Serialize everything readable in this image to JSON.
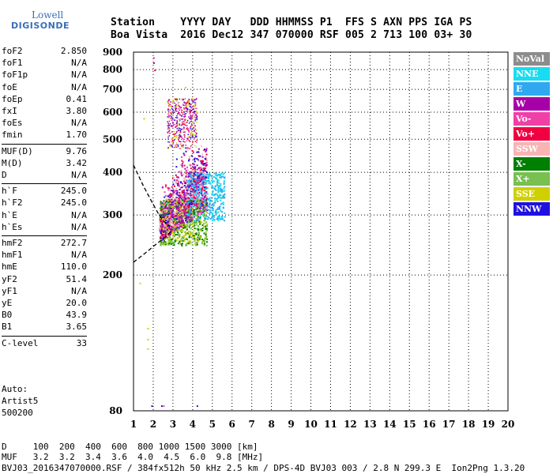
{
  "logo": {
    "line1": "Lowell",
    "line2": "DIGISONDE"
  },
  "header": {
    "row1": "Station    YYYY DAY   DDD HHMMSS P1  FFS S AXN PPS IGA PS",
    "row2": "Boa Vista  2016 Dec12 347 070000 RSF 005 2 713 100 03+ 30"
  },
  "params": [
    {
      "label": "foF2",
      "value": "2.850"
    },
    {
      "label": "foF1",
      "value": "N/A"
    },
    {
      "label": "foF1p",
      "value": "N/A"
    },
    {
      "label": "foE",
      "value": "N/A"
    },
    {
      "label": "foEp",
      "value": "0.41"
    },
    {
      "label": "fxI",
      "value": "3.80"
    },
    {
      "label": "foEs",
      "value": "N/A"
    },
    {
      "label": "fmin",
      "value": "1.70"
    },
    {
      "label": "MUF(D)",
      "value": "9.76"
    },
    {
      "label": "M(D)",
      "value": "3.42"
    },
    {
      "label": "D",
      "value": "N/A"
    },
    {
      "label": "h`F",
      "value": "245.0"
    },
    {
      "label": "h`F2",
      "value": "245.0"
    },
    {
      "label": "h`E",
      "value": "N/A"
    },
    {
      "label": "h`Es",
      "value": "N/A"
    },
    {
      "label": "hmF2",
      "value": "272.7"
    },
    {
      "label": "hmF1",
      "value": "N/A"
    },
    {
      "label": "hmE",
      "value": "110.0"
    },
    {
      "label": "yF2",
      "value": "51.4"
    },
    {
      "label": "yF1",
      "value": "N/A"
    },
    {
      "label": "yE",
      "value": "20.0"
    },
    {
      "label": "B0",
      "value": "43.9"
    },
    {
      "label": "B1",
      "value": "3.65"
    },
    {
      "label": "C-level",
      "value": "33"
    }
  ],
  "auto": {
    "line1": "Auto:",
    "line2": "Artist5",
    "line3": "500200"
  },
  "legend": [
    {
      "label": "NoVal",
      "color": "#8c8c8c"
    },
    {
      "label": "NNE",
      "color": "#18dcf0"
    },
    {
      "label": "E",
      "color": "#30a8f0"
    },
    {
      "label": "W",
      "color": "#a800a8"
    },
    {
      "label": "Vo-",
      "color": "#f040a8"
    },
    {
      "label": "Vo+",
      "color": "#f00040"
    },
    {
      "label": "SSW",
      "color": "#f8b4b4"
    },
    {
      "label": "X-",
      "color": "#008000"
    },
    {
      "label": "X+",
      "color": "#78c050"
    },
    {
      "label": "SSE",
      "color": "#d0d000"
    },
    {
      "label": "NNW",
      "color": "#2010e0"
    }
  ],
  "footer": {
    "d_row": "D     100  200  400  600  800 1000 1500 3000 [km]",
    "muf_row": "MUF   3.2  3.2  3.4  3.6  4.0  4.5  6.0  9.8 [MHz]",
    "file_row": "BVJ03_2016347070000.RSF / 384fx512h 50 kHz 2.5 km / DPS-4D BVJ03 003 / 2.8 N 299.3 E  Ion2Png 1.3.20"
  },
  "chart_data": {
    "type": "scatter",
    "title": "",
    "xlabel": "",
    "ylabel": "",
    "xlim": [
      1,
      20
    ],
    "ylim": [
      80,
      900
    ],
    "y_scale": "log",
    "x_ticks": [
      1,
      2,
      3,
      4,
      5,
      6,
      7,
      8,
      9,
      10,
      11,
      12,
      13,
      14,
      15,
      16,
      17,
      18,
      19,
      20
    ],
    "y_ticks": [
      80,
      200,
      300,
      400,
      500,
      600,
      700,
      800,
      900
    ],
    "grid": true,
    "legend_position": "right",
    "cluster_centers": [
      {
        "name": "Vo+",
        "f": 2.9,
        "h": 320
      },
      {
        "name": "W",
        "f": 3.4,
        "h": 340
      },
      {
        "name": "Vo-",
        "f": 3.2,
        "h": 330
      },
      {
        "name": "NNE",
        "f": 4.6,
        "h": 350
      },
      {
        "name": "E",
        "f": 4.3,
        "h": 340
      },
      {
        "name": "X-",
        "f": 3.0,
        "h": 300
      },
      {
        "name": "X+",
        "f": 3.3,
        "h": 290
      },
      {
        "name": "SSE",
        "f": 2.5,
        "h": 280
      },
      {
        "name": "NNW",
        "f": 3.4,
        "h": 480
      },
      {
        "name": "SSW",
        "f": 2.7,
        "h": 300
      }
    ],
    "o_trace": [
      [
        1.0,
        420
      ],
      [
        1.5,
        365
      ],
      [
        1.9,
        330
      ],
      [
        2.3,
        300
      ],
      [
        2.6,
        285
      ],
      [
        2.85,
        278
      ]
    ],
    "x_trace": [
      [
        1.0,
        218
      ],
      [
        1.6,
        232
      ],
      [
        2.1,
        245
      ],
      [
        2.6,
        258
      ],
      [
        2.9,
        268
      ]
    ]
  }
}
